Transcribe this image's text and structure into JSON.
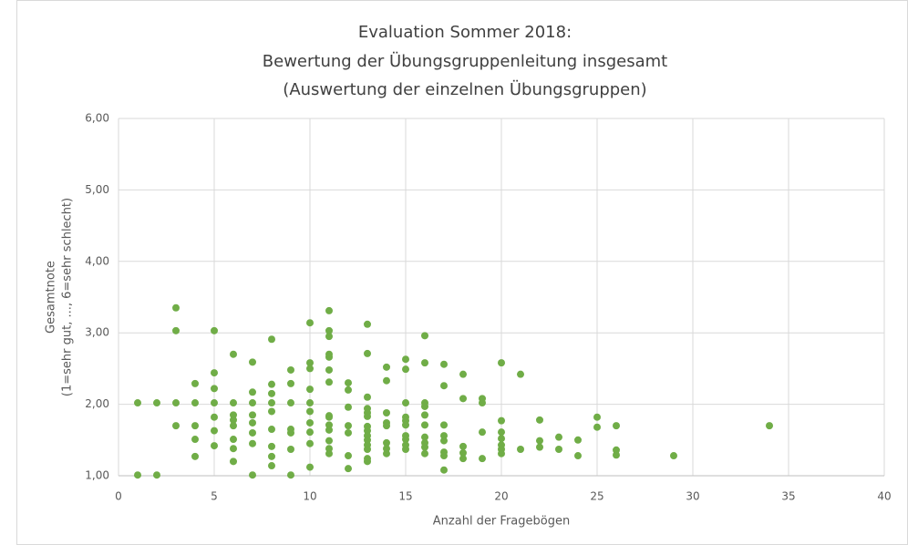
{
  "chart_data": {
    "type": "scatter",
    "title": [
      "Evaluation Sommer 2018:",
      "Bewertung der Übungsgruppenleitung insgesamt",
      "(Auswertung der einzelnen Übungsgruppen)"
    ],
    "x_label": "Anzahl der Fragebögen",
    "y_label": [
      "Gesamtnote",
      "(1=sehr gut, ..., 6=sehr schlecht)"
    ],
    "color": "#70ad47",
    "grid": true,
    "xlim": [
      0,
      40
    ],
    "xticks": [
      0,
      5,
      10,
      15,
      20,
      25,
      30,
      35,
      40
    ],
    "ylim": [
      1,
      6
    ],
    "yticks": [
      {
        "value": 1,
        "label": "1,00"
      },
      {
        "value": 2,
        "label": "2,00"
      },
      {
        "value": 3,
        "label": "3,00"
      },
      {
        "value": 4,
        "label": "4,00"
      },
      {
        "value": 5,
        "label": "5,00"
      },
      {
        "value": 6,
        "label": "6,00"
      }
    ],
    "x": [
      1,
      1,
      2,
      2,
      3,
      3,
      3,
      3,
      4,
      4,
      4,
      4,
      4,
      5,
      5,
      5,
      5,
      5,
      5,
      5,
      6,
      6,
      6,
      6,
      6,
      6,
      6,
      6,
      7,
      7,
      7,
      7,
      7,
      7,
      7,
      7,
      8,
      8,
      8,
      8,
      8,
      8,
      8,
      8,
      8,
      9,
      9,
      9,
      9,
      9,
      9,
      9,
      10,
      10,
      10,
      10,
      10,
      10,
      10,
      10,
      10,
      10,
      11,
      11,
      11,
      11,
      11,
      11,
      11,
      11,
      11,
      11,
      11,
      11,
      11,
      11,
      12,
      12,
      12,
      12,
      12,
      12,
      12,
      13,
      13,
      13,
      13,
      13,
      13,
      13,
      13,
      13,
      13,
      13,
      13,
      13,
      13,
      14,
      14,
      14,
      14,
      14,
      14,
      14,
      14,
      15,
      15,
      15,
      15,
      15,
      15,
      15,
      15,
      15,
      15,
      16,
      16,
      16,
      16,
      16,
      16,
      16,
      16,
      16,
      16,
      17,
      17,
      17,
      17,
      17,
      17,
      17,
      17,
      18,
      18,
      18,
      18,
      18,
      19,
      19,
      19,
      19,
      20,
      20,
      20,
      20,
      20,
      20,
      20,
      21,
      21,
      22,
      22,
      22,
      23,
      23,
      24,
      24,
      25,
      25,
      26,
      26,
      26,
      29,
      34
    ],
    "y": [
      2.02,
      1.01,
      2.02,
      1.01,
      3.35,
      3.03,
      2.02,
      1.7,
      2.29,
      2.02,
      1.7,
      1.51,
      1.27,
      3.03,
      2.44,
      2.22,
      2.02,
      1.82,
      1.63,
      1.42,
      2.7,
      2.02,
      1.85,
      1.78,
      1.7,
      1.51,
      1.38,
      1.2,
      2.59,
      2.17,
      2.02,
      1.85,
      1.74,
      1.6,
      1.45,
      1.01,
      2.91,
      2.28,
      2.15,
      2.02,
      1.9,
      1.65,
      1.41,
      1.27,
      1.14,
      2.48,
      2.29,
      2.02,
      1.65,
      1.6,
      1.37,
      1.01,
      3.14,
      2.58,
      2.5,
      2.21,
      2.02,
      1.9,
      1.74,
      1.61,
      1.45,
      1.12,
      3.31,
      3.03,
      2.95,
      2.7,
      2.66,
      2.48,
      2.31,
      1.84,
      1.82,
      1.71,
      1.64,
      1.49,
      1.38,
      1.31,
      2.3,
      2.2,
      1.96,
      1.7,
      1.6,
      1.28,
      1.1,
      3.12,
      2.71,
      2.1,
      1.94,
      1.88,
      1.83,
      1.69,
      1.63,
      1.56,
      1.5,
      1.43,
      1.37,
      1.24,
      1.2,
      2.52,
      2.33,
      1.88,
      1.74,
      1.7,
      1.46,
      1.38,
      1.31,
      2.63,
      2.49,
      2.02,
      1.82,
      1.77,
      1.71,
      1.56,
      1.51,
      1.43,
      1.37,
      2.96,
      2.58,
      2.02,
      1.97,
      1.85,
      1.71,
      1.54,
      1.46,
      1.4,
      1.31,
      2.56,
      2.26,
      1.71,
      1.56,
      1.49,
      1.33,
      1.28,
      1.08,
      2.42,
      2.08,
      1.41,
      1.32,
      1.24,
      2.08,
      2.02,
      1.61,
      1.24,
      2.58,
      1.77,
      1.61,
      1.52,
      1.43,
      1.37,
      1.31,
      2.42,
      1.37,
      1.78,
      1.49,
      1.4,
      1.54,
      1.37,
      1.5,
      1.28,
      1.82,
      1.68,
      1.7,
      1.36,
      1.29,
      1.28,
      1.7
    ]
  }
}
